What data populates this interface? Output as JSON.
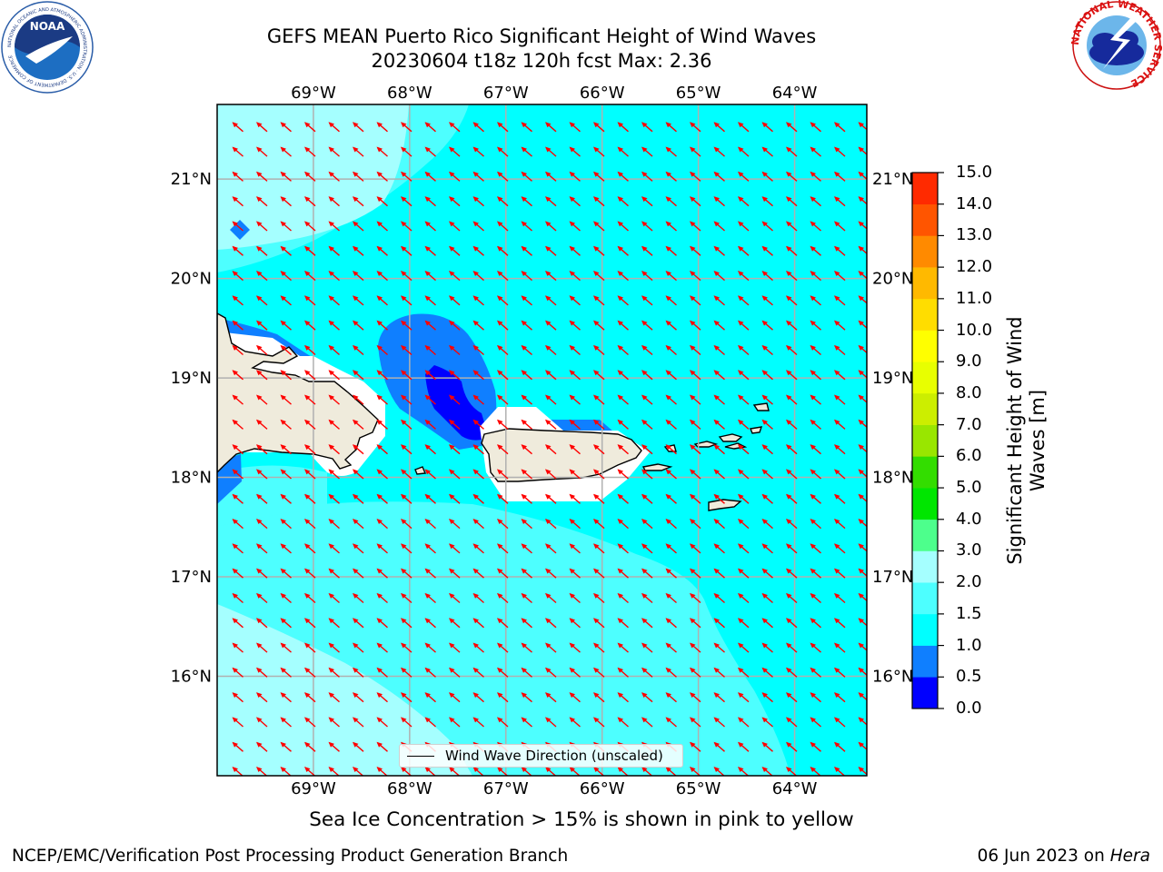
{
  "header": {
    "title_line1": "GEFS MEAN Puerto Rico Significant Height of Wind Waves",
    "title_line2": "20230604 t18z 120h fcst   Max: 2.36"
  },
  "logos": {
    "left": {
      "name": "NOAA",
      "ring_text": "NATIONAL OCEANIC AND ATMOSPHERIC ADMINISTRATION · U.S. DEPARTMENT OF COMMERCE"
    },
    "right": {
      "name": "National Weather Service",
      "ring_text": "NATIONAL WEATHER SERVICE"
    }
  },
  "map": {
    "lon_labels": [
      "69°W",
      "68°W",
      "67°W",
      "66°W",
      "65°W",
      "64°W"
    ],
    "lon_values": [
      -69,
      -68,
      -67,
      -66,
      -65,
      -64
    ],
    "lat_labels": [
      "21°N",
      "20°N",
      "19°N",
      "18°N",
      "17°N",
      "16°N"
    ],
    "lat_values": [
      21,
      20,
      19,
      18,
      17,
      16
    ],
    "extent": {
      "lon_min": -70.0,
      "lon_max": -63.25,
      "lat_min": 15.0,
      "lat_max": 21.75
    },
    "ocean_color": "#00ffff",
    "land_color": "#efebdc",
    "arrow_color": "#ff0000",
    "arrow_direction": "pointing toward north-west (waves from south-east)",
    "legend_label": "Wind Wave Direction (unscaled)"
  },
  "colorbar": {
    "title_line1": "Significant Height of Wind",
    "title_line2": "Waves [m]",
    "ticks": [
      "0.0",
      "0.5",
      "1.0",
      "1.5",
      "2.0",
      "3.0",
      "4.0",
      "5.0",
      "6.0",
      "7.0",
      "8.0",
      "9.0",
      "10.0",
      "11.0",
      "12.0",
      "13.0",
      "14.0",
      "15.0"
    ],
    "colors": [
      "#0000ff",
      "#0f7fff",
      "#00ffff",
      "#4dffff",
      "#a5ffff",
      "#4dff8c",
      "#00e600",
      "#33dd00",
      "#99e600",
      "#ccee00",
      "#e8ff00",
      "#ffff00",
      "#ffdd00",
      "#ffb900",
      "#ff8a00",
      "#ff5500",
      "#ff2a00",
      "#ff0000"
    ]
  },
  "footer": {
    "sea_ice_note": "Sea Ice Concentration > 15% is shown in pink to yellow",
    "left": "NCEP/EMC/Verification Post Processing Product Generation Branch",
    "right_date": "06 Jun 2023 on ",
    "right_host": "Hera"
  }
}
